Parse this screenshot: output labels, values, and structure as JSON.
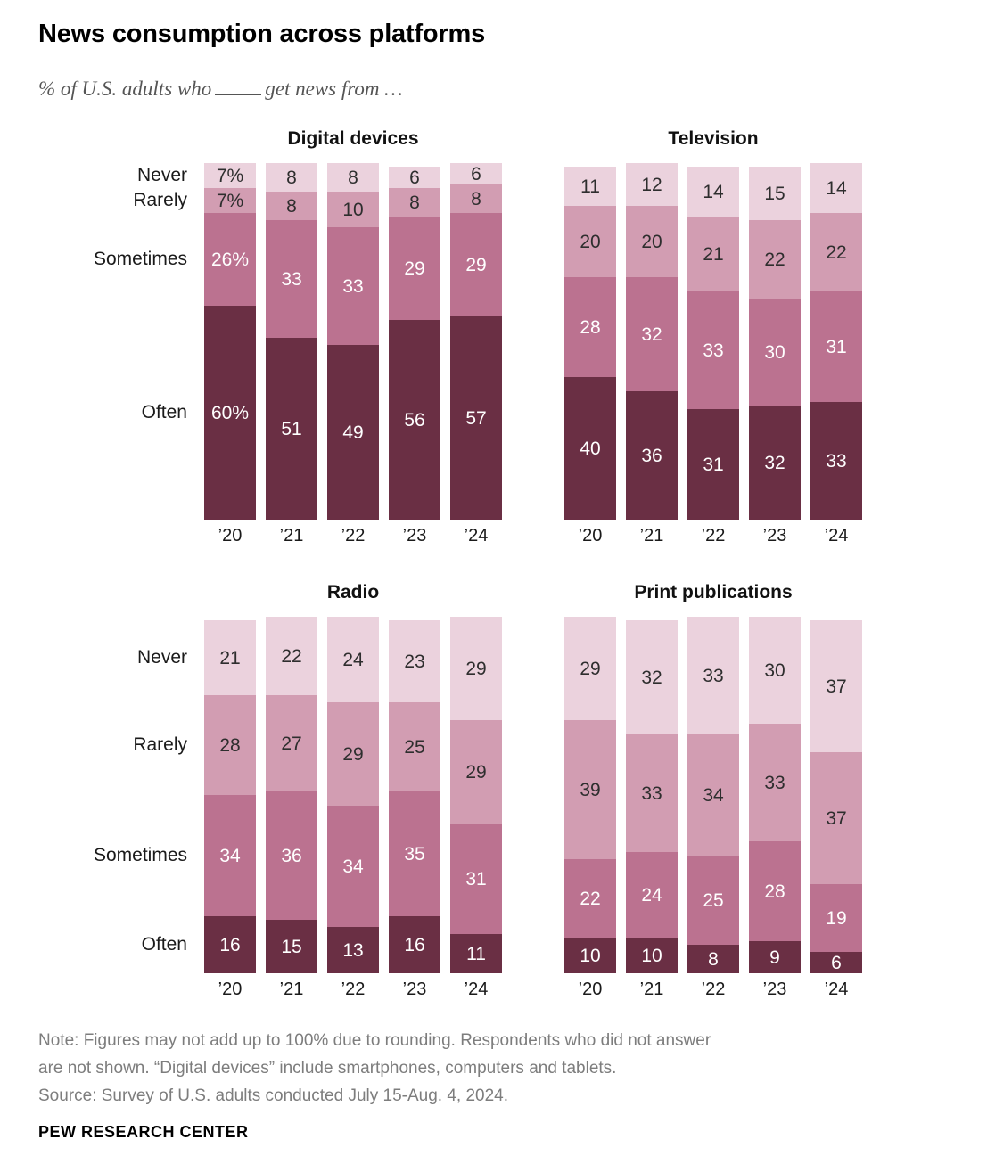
{
  "header": {
    "title": "News consumption across platforms",
    "subtitle_prefix": "% of U.S. adults who",
    "subtitle_suffix": "get news from …"
  },
  "chart_data": {
    "type": "bar",
    "stacked": true,
    "unit": "%",
    "x_categories": [
      "’20",
      "’21",
      "’22",
      "’23",
      "’24"
    ],
    "levels_top_to_bottom": [
      "Never",
      "Rarely",
      "Sometimes",
      "Often"
    ],
    "colors": {
      "Never": "#ebd2dd",
      "Rarely": "#d29db2",
      "Sometimes": "#bb7290",
      "Often": "#6a2f44"
    },
    "label_colors": {
      "Never": "#2e2e2e",
      "Rarely": "#2e2e2e",
      "Sometimes": "#ffffff",
      "Often": "#ffffff"
    },
    "ylim": [
      0,
      100
    ],
    "grid": false,
    "legend": "row labels on left charts",
    "charts": [
      {
        "title": "Digital devices",
        "row_labels": true,
        "series": [
          {
            "name": "Never",
            "values": [
              7,
              8,
              8,
              6,
              6
            ],
            "labels": [
              "7%",
              "8",
              "8",
              "6",
              "6"
            ]
          },
          {
            "name": "Rarely",
            "values": [
              7,
              8,
              10,
              8,
              8
            ],
            "labels": [
              "7%",
              "8",
              "10",
              "8",
              "8"
            ]
          },
          {
            "name": "Sometimes",
            "values": [
              26,
              33,
              33,
              29,
              29
            ],
            "labels": [
              "26%",
              "33",
              "33",
              "29",
              "29"
            ]
          },
          {
            "name": "Often",
            "values": [
              60,
              51,
              49,
              56,
              57
            ],
            "labels": [
              "60%",
              "51",
              "49",
              "56",
              "57"
            ]
          }
        ]
      },
      {
        "title": "Television",
        "row_labels": false,
        "series": [
          {
            "name": "Never",
            "values": [
              11,
              12,
              14,
              15,
              14
            ],
            "labels": [
              "11",
              "12",
              "14",
              "15",
              "14"
            ]
          },
          {
            "name": "Rarely",
            "values": [
              20,
              20,
              21,
              22,
              22
            ],
            "labels": [
              "20",
              "20",
              "21",
              "22",
              "22"
            ]
          },
          {
            "name": "Sometimes",
            "values": [
              28,
              32,
              33,
              30,
              31
            ],
            "labels": [
              "28",
              "32",
              "33",
              "30",
              "31"
            ]
          },
          {
            "name": "Often",
            "values": [
              40,
              36,
              31,
              32,
              33
            ],
            "labels": [
              "40",
              "36",
              "31",
              "32",
              "33"
            ]
          }
        ]
      },
      {
        "title": "Radio",
        "row_labels": true,
        "series": [
          {
            "name": "Never",
            "values": [
              21,
              22,
              24,
              23,
              29
            ],
            "labels": [
              "21",
              "22",
              "24",
              "23",
              "29"
            ]
          },
          {
            "name": "Rarely",
            "values": [
              28,
              27,
              29,
              25,
              29
            ],
            "labels": [
              "28",
              "27",
              "29",
              "25",
              "29"
            ]
          },
          {
            "name": "Sometimes",
            "values": [
              34,
              36,
              34,
              35,
              31
            ],
            "labels": [
              "34",
              "36",
              "34",
              "35",
              "31"
            ]
          },
          {
            "name": "Often",
            "values": [
              16,
              15,
              13,
              16,
              11
            ],
            "labels": [
              "16",
              "15",
              "13",
              "16",
              "11"
            ]
          }
        ]
      },
      {
        "title": "Print publications",
        "row_labels": false,
        "series": [
          {
            "name": "Never",
            "values": [
              29,
              32,
              33,
              30,
              37
            ],
            "labels": [
              "29",
              "32",
              "33",
              "30",
              "37"
            ]
          },
          {
            "name": "Rarely",
            "values": [
              39,
              33,
              34,
              33,
              37
            ],
            "labels": [
              "39",
              "33",
              "34",
              "33",
              "37"
            ]
          },
          {
            "name": "Sometimes",
            "values": [
              22,
              24,
              25,
              28,
              19
            ],
            "labels": [
              "22",
              "24",
              "25",
              "28",
              "19"
            ]
          },
          {
            "name": "Often",
            "values": [
              10,
              10,
              8,
              9,
              6
            ],
            "labels": [
              "10",
              "10",
              "8",
              "9",
              "6"
            ]
          }
        ]
      }
    ]
  },
  "footer": {
    "notes": [
      "Note: Figures may not add up to 100% due to rounding. Respondents who did not answer",
      "are not shown. “Digital devices” include smartphones, computers and tablets.",
      "Source: Survey of U.S. adults conducted July 15-Aug. 4, 2024."
    ],
    "brand": "PEW RESEARCH CENTER"
  }
}
